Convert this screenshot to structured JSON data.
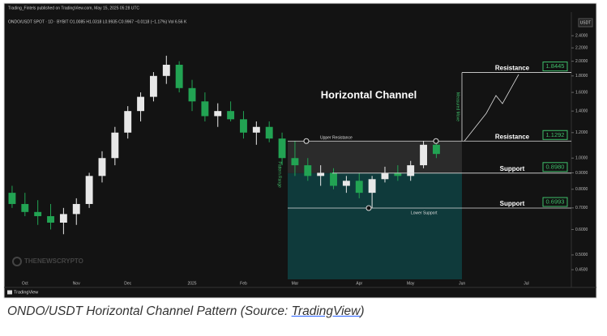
{
  "header": {
    "published": "Trading_Fintels published on TradingView.com, May 15, 2025 05:28 UTC",
    "symbol": "ONDO/USDT SPOT · 1D · BYBIT  O1.0085 H1.0318 L0.9935 C0.9967 −0.0118 (−1.17%)  Vol 6.56 K",
    "currency": "USDT",
    "watermark": "THENEWSCRYPTO",
    "brand": "TradingView"
  },
  "chart_data": {
    "type": "candlestick",
    "title": "Horizontal Channel",
    "categories": [
      null,
      "Oct",
      null,
      null,
      null,
      "Nov",
      null,
      null,
      null,
      "Dec",
      null,
      null,
      null,
      null,
      "2025",
      null,
      null,
      null,
      "Feb",
      null,
      null,
      null,
      "Mar",
      null,
      null,
      null,
      null,
      "Apr",
      null,
      null,
      null,
      "May",
      null,
      null,
      null,
      "Jun",
      null,
      null,
      null,
      null,
      "Jul",
      null,
      null,
      null
    ],
    "open": [
      0.78,
      0.72,
      0.68,
      0.66,
      0.63,
      0.67,
      0.72,
      0.88,
      1.0,
      1.2,
      1.4,
      1.55,
      1.8,
      1.95,
      1.65,
      1.5,
      1.35,
      1.4,
      1.32,
      1.2,
      1.25,
      1.15,
      1.0,
      0.95,
      0.88,
      0.9,
      0.82,
      0.85,
      0.78,
      0.86,
      0.9,
      0.88,
      0.95,
      1.1,
      null,
      null,
      null,
      null,
      null,
      null,
      null,
      null,
      null,
      null
    ],
    "high": [
      0.82,
      0.78,
      0.74,
      0.72,
      0.7,
      0.75,
      0.9,
      1.05,
      1.25,
      1.45,
      1.6,
      1.85,
      2.08,
      2.0,
      1.75,
      1.6,
      1.48,
      1.5,
      1.4,
      1.3,
      1.3,
      1.2,
      1.13,
      1.0,
      0.95,
      0.93,
      0.88,
      0.9,
      0.88,
      0.94,
      0.95,
      0.98,
      1.13,
      1.15,
      null,
      null,
      null,
      null,
      null,
      null,
      null,
      null,
      null,
      null
    ],
    "low": [
      0.7,
      0.66,
      0.62,
      0.6,
      0.58,
      0.62,
      0.7,
      0.84,
      0.95,
      1.15,
      1.3,
      1.5,
      1.7,
      1.6,
      1.4,
      1.3,
      1.25,
      1.3,
      1.15,
      1.1,
      1.12,
      0.95,
      0.88,
      0.85,
      0.82,
      0.8,
      0.78,
      0.75,
      0.7,
      0.84,
      0.85,
      0.85,
      0.93,
      1.0,
      null,
      null,
      null,
      null,
      null,
      null,
      null,
      null,
      null,
      null
    ],
    "close": [
      0.72,
      0.68,
      0.66,
      0.63,
      0.67,
      0.72,
      0.88,
      1.0,
      1.2,
      1.4,
      1.55,
      1.8,
      1.95,
      1.65,
      1.5,
      1.35,
      1.4,
      1.32,
      1.2,
      1.25,
      1.15,
      1.0,
      0.95,
      0.88,
      0.9,
      0.82,
      0.85,
      0.78,
      0.86,
      0.9,
      0.88,
      0.95,
      1.1,
      1.03,
      null,
      null,
      null,
      null,
      null,
      null,
      null,
      null,
      null,
      null
    ],
    "up_color": "#e8e8e8",
    "down_color": "#22a353",
    "log_scale": true,
    "ylim": [
      0.42,
      2.76
    ],
    "yticks": [
      {
        "value": 0.45,
        "label": "0.4500"
      },
      {
        "value": 0.5,
        "label": "0.5000"
      },
      {
        "value": 0.6,
        "label": "0.6000"
      },
      {
        "value": 0.7,
        "label": "0.7000"
      },
      {
        "value": 0.8,
        "label": "0.8000"
      },
      {
        "value": 0.9,
        "label": "0.9000"
      },
      {
        "value": 1,
        "label": "1.0000"
      },
      {
        "value": 1.2,
        "label": "1.2000"
      },
      {
        "value": 1.4,
        "label": "1.4000"
      },
      {
        "value": 1.6,
        "label": "1.6000"
      },
      {
        "value": 1.8,
        "label": "1.8000"
      },
      {
        "value": 2,
        "label": "2.0000"
      },
      {
        "value": 2.2,
        "label": "2.2000"
      },
      {
        "value": 2.4,
        "label": "2.4000"
      }
    ],
    "levels": [
      {
        "name": "Resistance",
        "value": 1.8445
      },
      {
        "name": "Resistance",
        "value": 1.1292
      },
      {
        "name": "Support",
        "value": 0.898,
        "value_label": "0.8980"
      },
      {
        "name": "Support",
        "value": 0.6993
      }
    ],
    "annotations": {
      "upper": "Upper Resistance",
      "lower": "Lower Support",
      "measured": "Measured Move",
      "range": "Pattern Range"
    }
  },
  "caption": {
    "text": "ONDO/USDT Horizontal Channel Pattern (Source:",
    "link": "TradingView",
    "suffix": ")"
  }
}
